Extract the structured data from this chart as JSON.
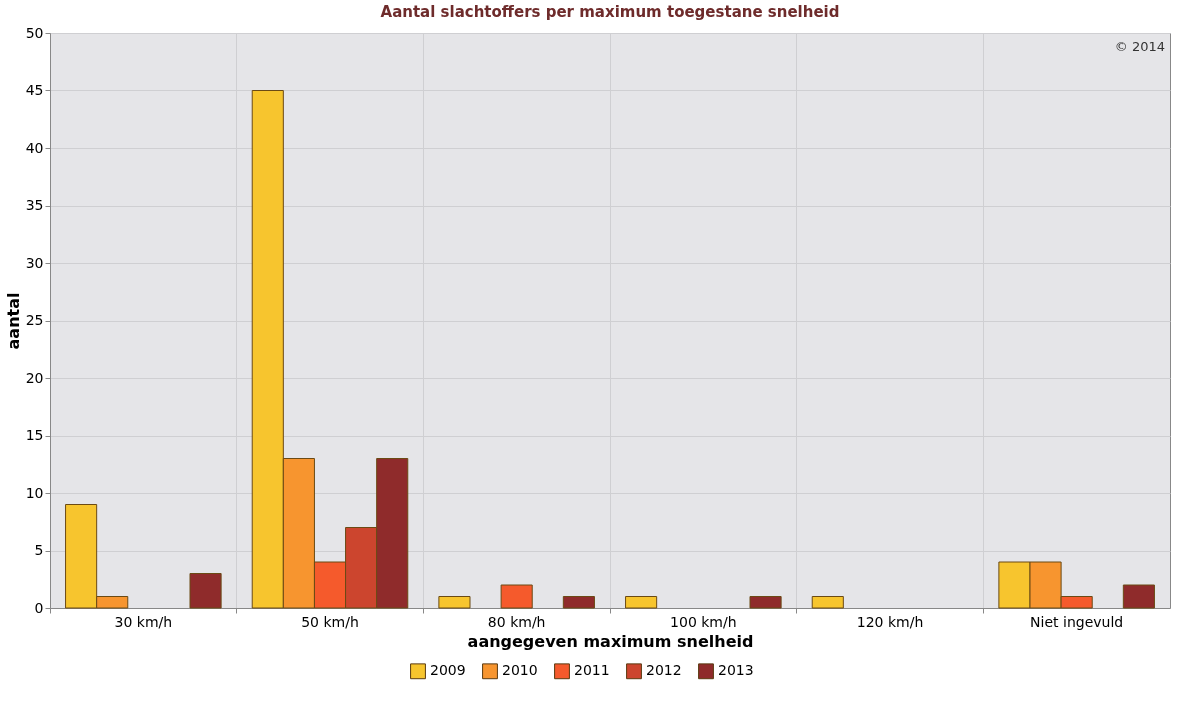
{
  "chart_data": {
    "type": "bar",
    "title": "Aantal slachtoffers per maximum toegestane snelheid",
    "xlabel": "aangegeven maximum snelheid",
    "ylabel": "aantal",
    "categories": [
      "30 km/h",
      "50 km/h",
      "80 km/h",
      "100 km/h",
      "120 km/h",
      "Niet ingevuld"
    ],
    "series": [
      {
        "name": "2009",
        "color": "#f7c52e",
        "values": [
          9,
          45,
          1,
          1,
          1,
          4
        ]
      },
      {
        "name": "2010",
        "color": "#f7952f",
        "values": [
          1,
          13,
          null,
          null,
          null,
          4
        ]
      },
      {
        "name": "2011",
        "color": "#f55a2c",
        "values": [
          null,
          4,
          2,
          null,
          null,
          1
        ]
      },
      {
        "name": "2012",
        "color": "#cc452e",
        "values": [
          null,
          7,
          null,
          null,
          null,
          null
        ]
      },
      {
        "name": "2013",
        "color": "#8f2b2b",
        "values": [
          3,
          13,
          1,
          1,
          null,
          2
        ]
      }
    ],
    "ylim": [
      0,
      50
    ],
    "yticks": [
      0,
      5,
      10,
      15,
      20,
      25,
      30,
      35,
      40,
      45,
      50
    ],
    "grid": true,
    "legend": "bottom",
    "annotations": [
      "© 2014"
    ]
  }
}
